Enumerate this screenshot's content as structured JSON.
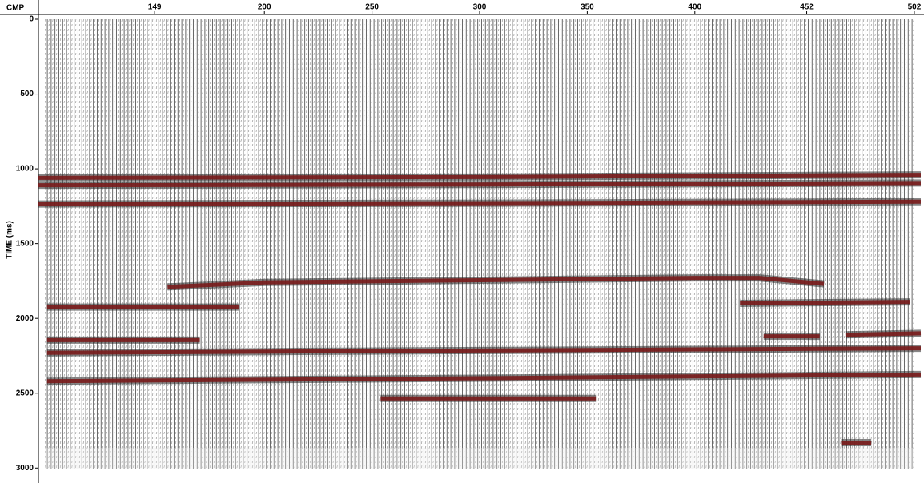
{
  "chart_data": {
    "type": "seismic",
    "xlabel": "CMP",
    "ylabel": "TIME (ms)",
    "xlim": [
      95,
      505
    ],
    "ylim": [
      0,
      3100
    ],
    "xticks": [
      149,
      200,
      250,
      300,
      350,
      400,
      452,
      502
    ],
    "yticks": [
      0,
      500,
      1000,
      1500,
      2000,
      2500,
      3000
    ],
    "color": "#7a1c1c",
    "events": [
      {
        "x": [
          95,
          300,
          505
        ],
        "values": [
          1060,
          1055,
          1040
        ]
      },
      {
        "x": [
          95,
          300,
          505
        ],
        "values": [
          1110,
          1105,
          1095
        ]
      },
      {
        "x": [
          95,
          300,
          505
        ],
        "values": [
          1235,
          1230,
          1220
        ]
      },
      {
        "x": [
          155,
          200,
          300,
          400,
          430,
          460
        ],
        "values": [
          1790,
          1760,
          1745,
          1730,
          1730,
          1770
        ]
      },
      {
        "x": [
          99,
          188
        ],
        "values": [
          1925,
          1925
        ]
      },
      {
        "x": [
          421,
          500
        ],
        "values": [
          1900,
          1890
        ]
      },
      {
        "x": [
          99,
          170
        ],
        "values": [
          2145,
          2145
        ]
      },
      {
        "x": [
          432,
          458
        ],
        "values": [
          2120,
          2120
        ]
      },
      {
        "x": [
          470,
          505
        ],
        "values": [
          2110,
          2100
        ]
      },
      {
        "x": [
          99,
          300,
          505
        ],
        "values": [
          2230,
          2215,
          2200
        ]
      },
      {
        "x": [
          99,
          300,
          505
        ],
        "values": [
          2420,
          2400,
          2375
        ]
      },
      {
        "x": [
          254,
          354
        ],
        "values": [
          2535,
          2535
        ]
      },
      {
        "x": [
          468,
          482
        ],
        "values": [
          2830,
          2830
        ]
      }
    ]
  }
}
